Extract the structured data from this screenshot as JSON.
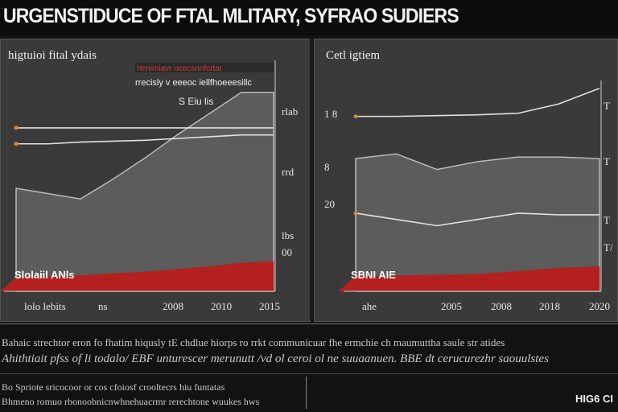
{
  "header": {
    "title": "URGENSTIDUCE OF FTAL MLITARY, SYFRAO SUDIERS"
  },
  "colors": {
    "background": "#121212",
    "panel": "#3a3a3a",
    "area_gray": "#5c5c5c",
    "area_red": "#b3201f",
    "accent_orange": "#d08a3a",
    "line": "#e0e0e0"
  },
  "footer": {
    "line1": "Bahaic strechtor eron fo fhatim hiqusly tE chdlue hiorps ro rrkt communicuar fhe ermchie ch maumuttha saule str atides",
    "line2": "Ahithtiait pfss of li todalo/ EBF unturescer merunutt /vd ol ceroi ol ne suuaanuen. BBE dt cerucurezhr saouulstes",
    "line3": "Bo Spriote sricocoor or cos cfoiosf crooltecrs hiu funtatas",
    "line4": "Bhmeno romuo rbonoobnicnwhnehuacrmr rerechtone wuukes hws",
    "tag": "HIG6 CI"
  },
  "chart_data": [
    {
      "type": "area",
      "title": "higtuioi fital ydais",
      "annotation_red": "hlrnimiavr ocecsnnfcrtar",
      "annotation_lines": [
        "rrecisly v eeeoc iellfhoeeesillc",
        "S Eiu lis"
      ],
      "right_labels": [
        "rlab",
        "rrd",
        "lbs",
        "00"
      ],
      "band_label": "Slolaiil ANls",
      "x_labels": [
        "lolo lebits",
        "ns",
        "2008",
        "2010",
        "2015"
      ],
      "x": [
        0,
        1,
        2,
        3,
        4,
        5,
        6,
        7,
        8
      ],
      "series": [
        {
          "name": "gray area",
          "values": [
            58,
            55,
            52,
            63,
            75,
            88,
            100,
            112,
            112
          ]
        },
        {
          "name": "red band",
          "values": [
            8,
            8.5,
            9,
            10,
            11,
            12.5,
            14,
            16,
            17
          ]
        },
        {
          "name": "upper line",
          "values": [
            83,
            83,
            84,
            84.5,
            85,
            86,
            87,
            88,
            88
          ]
        },
        {
          "name": "reference line",
          "values": [
            92,
            92,
            92,
            92,
            92,
            92,
            92,
            92,
            92
          ]
        }
      ],
      "ylim": [
        0,
        130
      ]
    },
    {
      "type": "area",
      "title": "Cetl igtiem",
      "left_labels": [
        "1 8",
        "8",
        "20"
      ],
      "right_labels": [
        "T",
        "T",
        "T",
        "T/"
      ],
      "band_label": "SBNI AIE",
      "x_labels": [
        "ahe",
        "2005",
        "2008",
        "2018",
        "2020"
      ],
      "x": [
        0,
        1,
        2,
        3,
        4,
        5,
        6
      ],
      "series": [
        {
          "name": "top line",
          "values": [
            112,
            112,
            112.5,
            113,
            114,
            120,
            130
          ]
        },
        {
          "name": "gray area",
          "values": [
            85,
            88,
            78,
            83,
            86,
            86,
            85
          ]
        },
        {
          "name": "lower line",
          "values": [
            50,
            46,
            42,
            46,
            50,
            49,
            49
          ]
        },
        {
          "name": "red band",
          "values": [
            10,
            10,
            10.5,
            11,
            13,
            15,
            16
          ]
        }
      ],
      "ylim": [
        0,
        135
      ]
    }
  ]
}
